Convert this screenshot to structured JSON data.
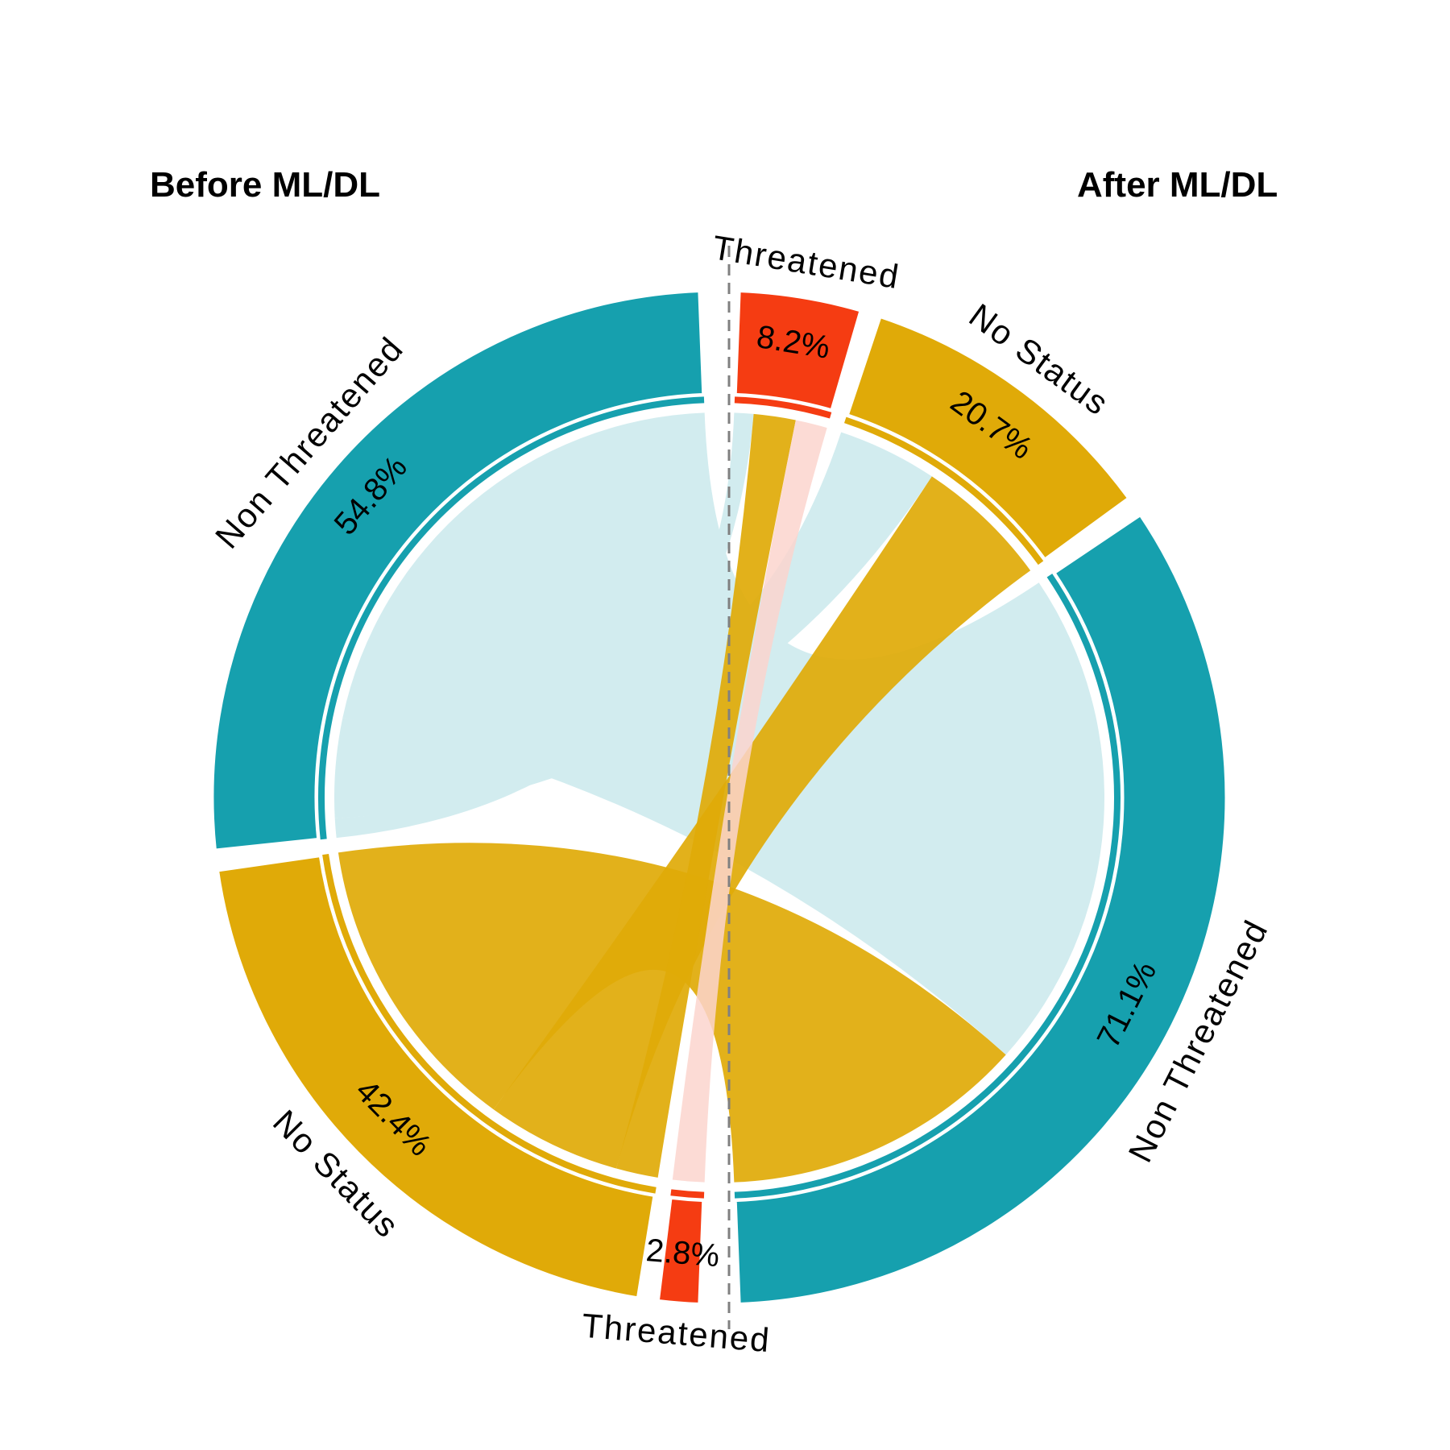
{
  "titles": {
    "before": "Before ML/DL",
    "after": "After ML/DL"
  },
  "colors": {
    "Non Threatened": "#16a0ae",
    "No Status": "#e0aa08",
    "Threatened": "#f53c12"
  },
  "chart_data": {
    "type": "chord",
    "groups": [
      {
        "side": "Before ML/DL",
        "name": "Non Threatened",
        "percent": 54.8,
        "label_pct": "54.8%"
      },
      {
        "side": "Before ML/DL",
        "name": "No Status",
        "percent": 42.4,
        "label_pct": "42.4%"
      },
      {
        "side": "Before ML/DL",
        "name": "Threatened",
        "percent": 2.8,
        "label_pct": "2.8%"
      },
      {
        "side": "After ML/DL",
        "name": "Threatened",
        "percent": 8.2,
        "label_pct": "8.2%"
      },
      {
        "side": "After ML/DL",
        "name": "No Status",
        "percent": 20.7,
        "label_pct": "20.7%"
      },
      {
        "side": "After ML/DL",
        "name": "Non Threatened",
        "percent": 71.1,
        "label_pct": "71.1%"
      }
    ],
    "flows": [
      {
        "from": "Non Threatened",
        "to": "Non Threatened",
        "percent": 44.3
      },
      {
        "from": "Non Threatened",
        "to": "No Status",
        "percent": 8.8
      },
      {
        "from": "Non Threatened",
        "to": "Threatened",
        "percent": 1.7
      },
      {
        "from": "No Status",
        "to": "Non Threatened",
        "percent": 26.8
      },
      {
        "from": "No Status",
        "to": "No Status",
        "percent": 11.9
      },
      {
        "from": "No Status",
        "to": "Threatened",
        "percent": 3.7
      },
      {
        "from": "Threatened",
        "to": "Threatened",
        "percent": 2.8
      }
    ]
  }
}
